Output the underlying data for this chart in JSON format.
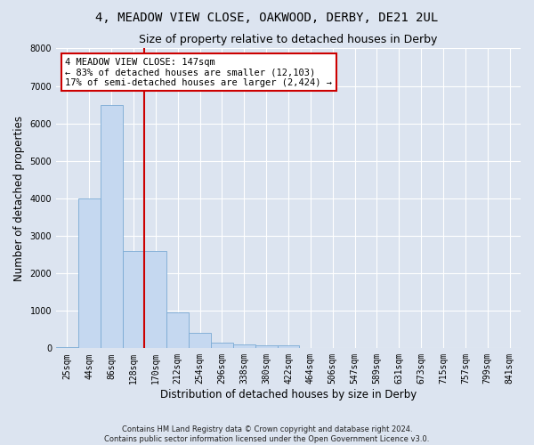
{
  "title": "4, MEADOW VIEW CLOSE, OAKWOOD, DERBY, DE21 2UL",
  "subtitle": "Size of property relative to detached houses in Derby",
  "xlabel": "Distribution of detached houses by size in Derby",
  "ylabel": "Number of detached properties",
  "footer_line1": "Contains HM Land Registry data © Crown copyright and database right 2024.",
  "footer_line2": "Contains public sector information licensed under the Open Government Licence v3.0.",
  "bin_labels": [
    "25sqm",
    "44sqm",
    "86sqm",
    "128sqm",
    "170sqm",
    "212sqm",
    "254sqm",
    "296sqm",
    "338sqm",
    "380sqm",
    "422sqm",
    "464sqm",
    "506sqm",
    "547sqm",
    "589sqm",
    "631sqm",
    "673sqm",
    "715sqm",
    "757sqm",
    "799sqm",
    "841sqm"
  ],
  "bar_values": [
    30,
    4000,
    6500,
    2600,
    2600,
    950,
    400,
    160,
    105,
    80,
    70,
    0,
    0,
    0,
    0,
    0,
    0,
    0,
    0,
    0,
    0
  ],
  "bar_color": "#c5d8f0",
  "bar_edge_color": "#7aaad4",
  "vline_color": "#cc0000",
  "ylim": [
    0,
    8000
  ],
  "yticks": [
    0,
    1000,
    2000,
    3000,
    4000,
    5000,
    6000,
    7000,
    8000
  ],
  "annotation_text": "4 MEADOW VIEW CLOSE: 147sqm\n← 83% of detached houses are smaller (12,103)\n17% of semi-detached houses are larger (2,424) →",
  "annotation_box_color": "white",
  "annotation_box_edge_color": "#cc0000",
  "background_color": "#dce4f0",
  "plot_background_color": "#dce4f0",
  "title_fontsize": 10,
  "subtitle_fontsize": 9,
  "axis_label_fontsize": 8.5,
  "tick_fontsize": 7,
  "annotation_fontsize": 7.5,
  "footer_fontsize": 6,
  "vline_index": 3.5
}
